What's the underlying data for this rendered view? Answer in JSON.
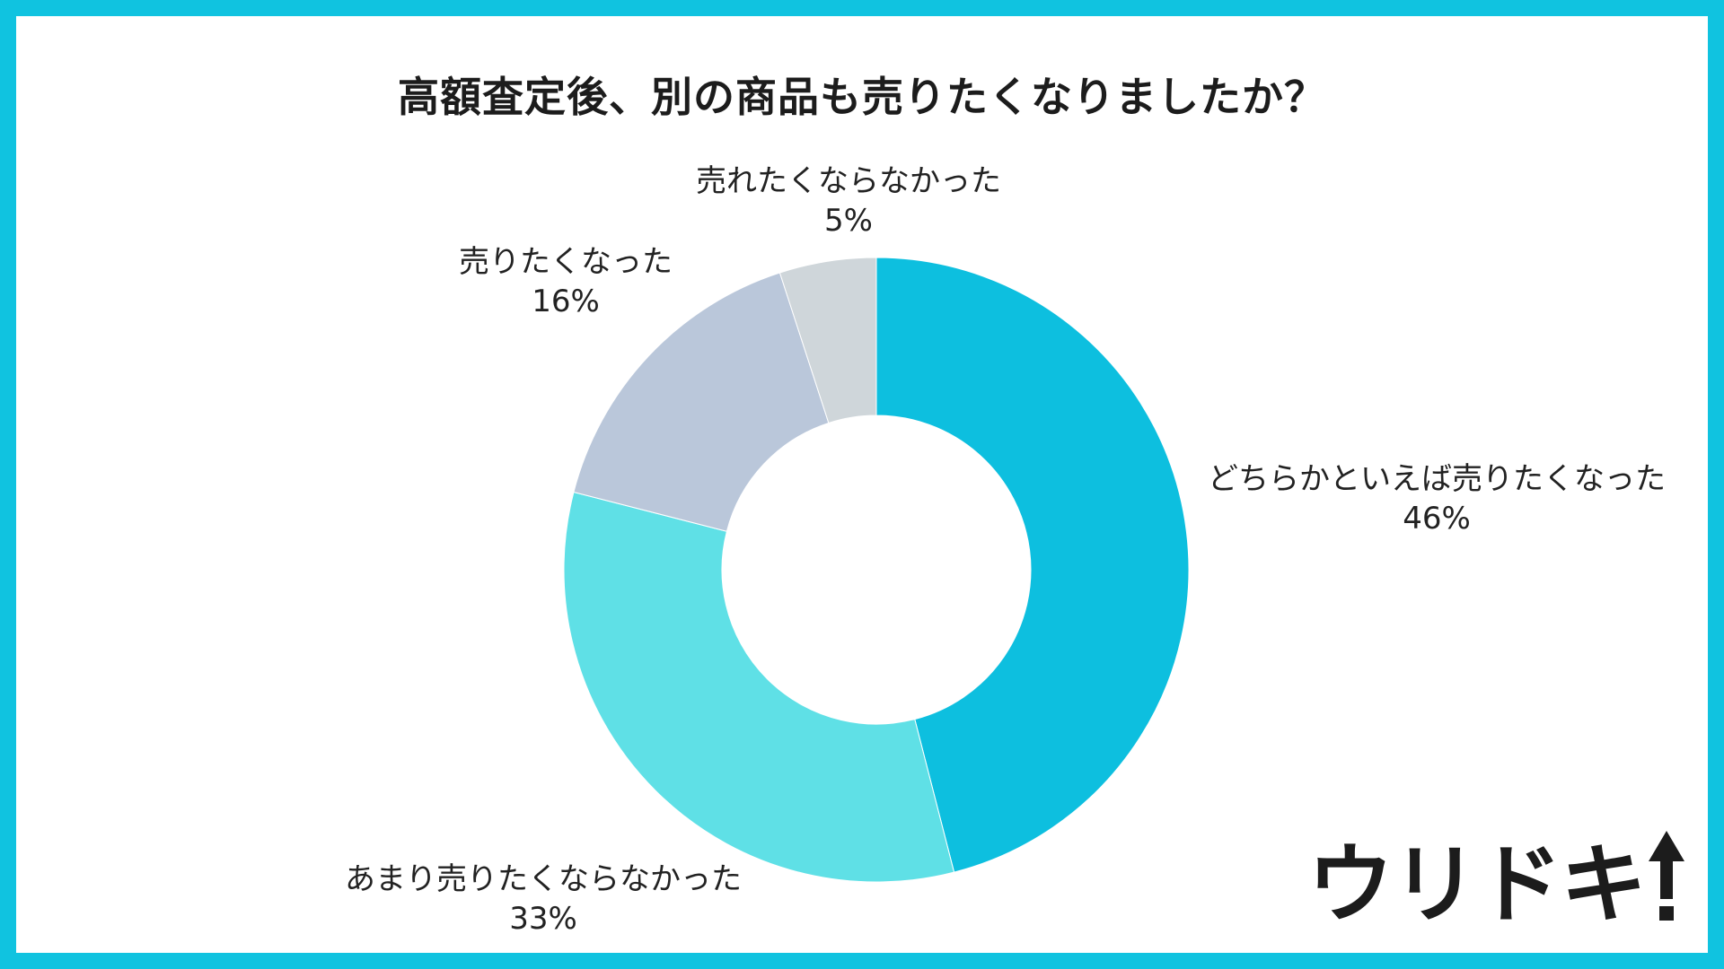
{
  "colors": {
    "frame": "#10c3e0",
    "background": "#ffffff",
    "text": "#222222"
  },
  "chart_data": {
    "type": "pie",
    "donut": true,
    "title": "高額査定後、別の商品も売りたくなりましたか？",
    "slices": [
      {
        "label": "どちらかといえば売りたくなった",
        "value": 46,
        "value_label": "46%",
        "color": "#0dbfdf"
      },
      {
        "label": "あまり売りたくならなかった",
        "value": 33,
        "value_label": "33%",
        "color": "#5fe0e6"
      },
      {
        "label": "売りたくなった",
        "value": 16,
        "value_label": "16%",
        "color": "#bac7da"
      },
      {
        "label": "売れたくならなかった",
        "value": 5,
        "value_label": "5%",
        "color": "#cfd6da"
      }
    ],
    "start": "top",
    "direction": "clockwise",
    "legend": "none"
  },
  "brand": {
    "logo_text": "ウリドキ",
    "logo_mark": "up-arrow-exclamation-icon"
  }
}
